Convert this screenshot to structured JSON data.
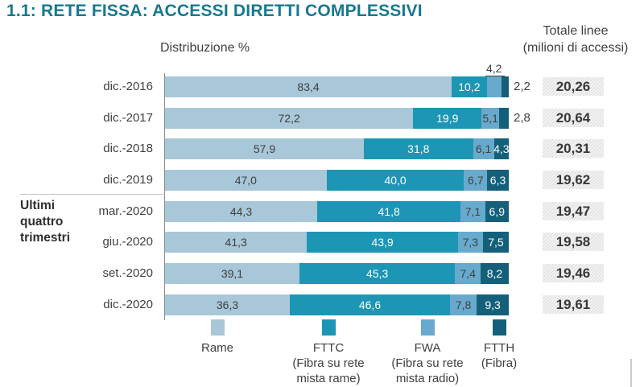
{
  "title": "1.1: RETE FISSA: ACCESSI DIRETTI COMPLESSIVI",
  "header": {
    "left": "Distribuzione %",
    "right_line1": "Totale linee",
    "right_line2": "(milioni di accessi)"
  },
  "group_label": {
    "lines": [
      "Ultimi",
      "quattro",
      "trimestri"
    ]
  },
  "colors": {
    "rame": "#a8c7d9",
    "fttc": "#1c96b4",
    "fwa": "#68aacd",
    "ftth": "#14607a",
    "title_text": "#17798f",
    "body_text": "#3f3f3f"
  },
  "chart_data": {
    "type": "bar",
    "orientation": "horizontal",
    "stacked": true,
    "unit": "%",
    "title": "1.1: RETE FISSA: ACCESSI DIRETTI COMPLESSIVI",
    "xlabel": "Distribuzione %",
    "xlim": [
      0,
      100
    ],
    "grid": false,
    "legend_position": "bottom",
    "series_names": [
      "Rame",
      "FTTC",
      "FWA",
      "FTTH"
    ],
    "categories": [
      "dic.-2016",
      "dic.-2017",
      "dic.-2018",
      "dic.-2019",
      "mar.-2020",
      "giu.-2020",
      "set.-2020",
      "dic.-2020"
    ],
    "totals_header": [
      "Totale linee",
      "(milioni di accessi)"
    ],
    "rows": [
      {
        "category": "dic.-2016",
        "values": [
          83.4,
          10.2,
          4.2,
          2.2
        ],
        "display": [
          "83,4",
          "10,2",
          "4,2",
          "2,2"
        ],
        "total": "20,26",
        "fwa_label_above": true,
        "ftth_label_outside": true
      },
      {
        "category": "dic.-2017",
        "values": [
          72.2,
          19.9,
          5.1,
          2.8
        ],
        "display": [
          "72,2",
          "19,9",
          "5,1",
          "2,8"
        ],
        "total": "20,64",
        "fwa_label_above": false,
        "ftth_label_outside": true
      },
      {
        "category": "dic.-2018",
        "values": [
          57.9,
          31.8,
          6.1,
          4.3
        ],
        "display": [
          "57,9",
          "31,8",
          "6,1",
          "4,3"
        ],
        "total": "20,31",
        "fwa_label_above": false,
        "ftth_label_outside": false
      },
      {
        "category": "dic.-2019",
        "values": [
          47.0,
          40.0,
          6.7,
          6.3
        ],
        "display": [
          "47,0",
          "40,0",
          "6,7",
          "6,3"
        ],
        "total": "19,62",
        "fwa_label_above": false,
        "ftth_label_outside": false
      },
      {
        "category": "mar.-2020",
        "values": [
          44.3,
          41.8,
          7.1,
          6.9
        ],
        "display": [
          "44,3",
          "41,8",
          "7,1",
          "6,9"
        ],
        "total": "19,47",
        "fwa_label_above": false,
        "ftth_label_outside": false
      },
      {
        "category": "giu.-2020",
        "values": [
          41.3,
          43.9,
          7.3,
          7.5
        ],
        "display": [
          "41,3",
          "43,9",
          "7,3",
          "7,5"
        ],
        "total": "19,58",
        "fwa_label_above": false,
        "ftth_label_outside": false
      },
      {
        "category": "set.-2020",
        "values": [
          39.1,
          45.3,
          7.4,
          8.2
        ],
        "display": [
          "39,1",
          "45,3",
          "7,4",
          "8,2"
        ],
        "total": "19,46",
        "fwa_label_above": false,
        "ftth_label_outside": false
      },
      {
        "category": "dic.-2020",
        "values": [
          36.3,
          46.6,
          7.8,
          9.3
        ],
        "display": [
          "36,3",
          "46,6",
          "7,8",
          "9,3"
        ],
        "total": "19,61",
        "fwa_label_above": false,
        "ftth_label_outside": false
      }
    ],
    "legend": [
      {
        "name": "Rame",
        "sub": []
      },
      {
        "name": "FTTC",
        "sub": [
          "(Fibra su rete",
          "mista rame)"
        ]
      },
      {
        "name": "FWA",
        "sub": [
          "(Fibra su rete",
          "mista radio)"
        ]
      },
      {
        "name": "FTTH",
        "sub": [
          "(Fibra)"
        ]
      }
    ]
  }
}
